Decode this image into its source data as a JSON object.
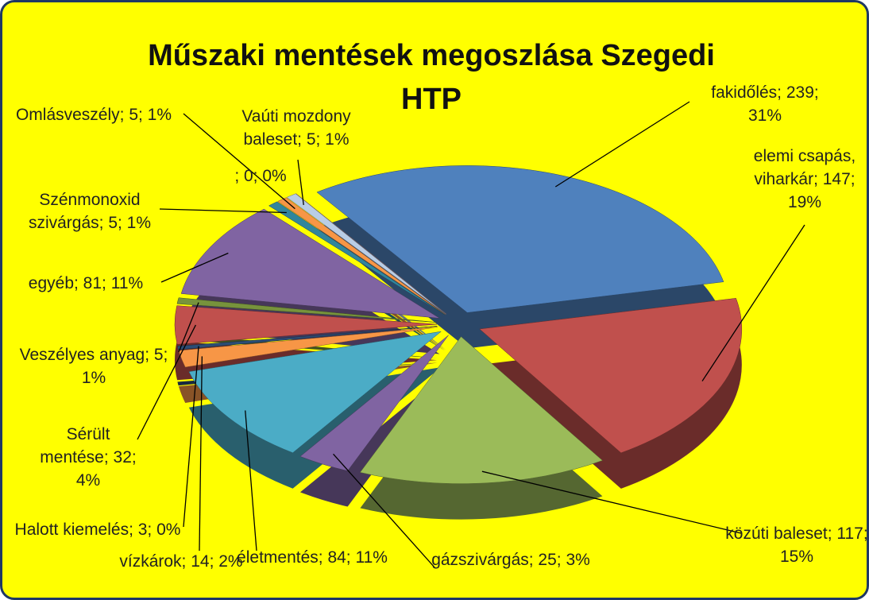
{
  "chart_data": {
    "type": "pie3d",
    "title": "Műszaki mentések megoszlása Szegedi HTP",
    "values": [
      239,
      147,
      117,
      25,
      84,
      14,
      3,
      32,
      5,
      81,
      5,
      5,
      5,
      0
    ],
    "value_labels": [
      "fakidőlés; 239; 31%",
      "elemi csapás, viharkár; 147; 19%",
      "közúti baleset; 117; 15%",
      "gázszivárgás; 25; 3%",
      "életmentés; 84; 11%",
      "vízkárok; 14; 2%",
      "Halott kiemelés; 3; 0%",
      "Sérült mentése; 32; 4%",
      "Veszélyes anyag; 5; 1%",
      "egyéb; 81; 11%",
      "Szénmonoxid szivárgás; 5; 1%",
      "Omlásveszély; 5; 1%",
      "Vaúti mozdony baleset; 5; 1%",
      "; 0; 0%"
    ],
    "colors": [
      "#4f81bd",
      "#c0504d",
      "#9bbb59",
      "#8064a2",
      "#4bacc6",
      "#f79646",
      "#2c4d75",
      "#c0504d",
      "#77933c",
      "#8064a2",
      "#31859c",
      "#f79646",
      "#b9cde5",
      "#d99694"
    ]
  }
}
